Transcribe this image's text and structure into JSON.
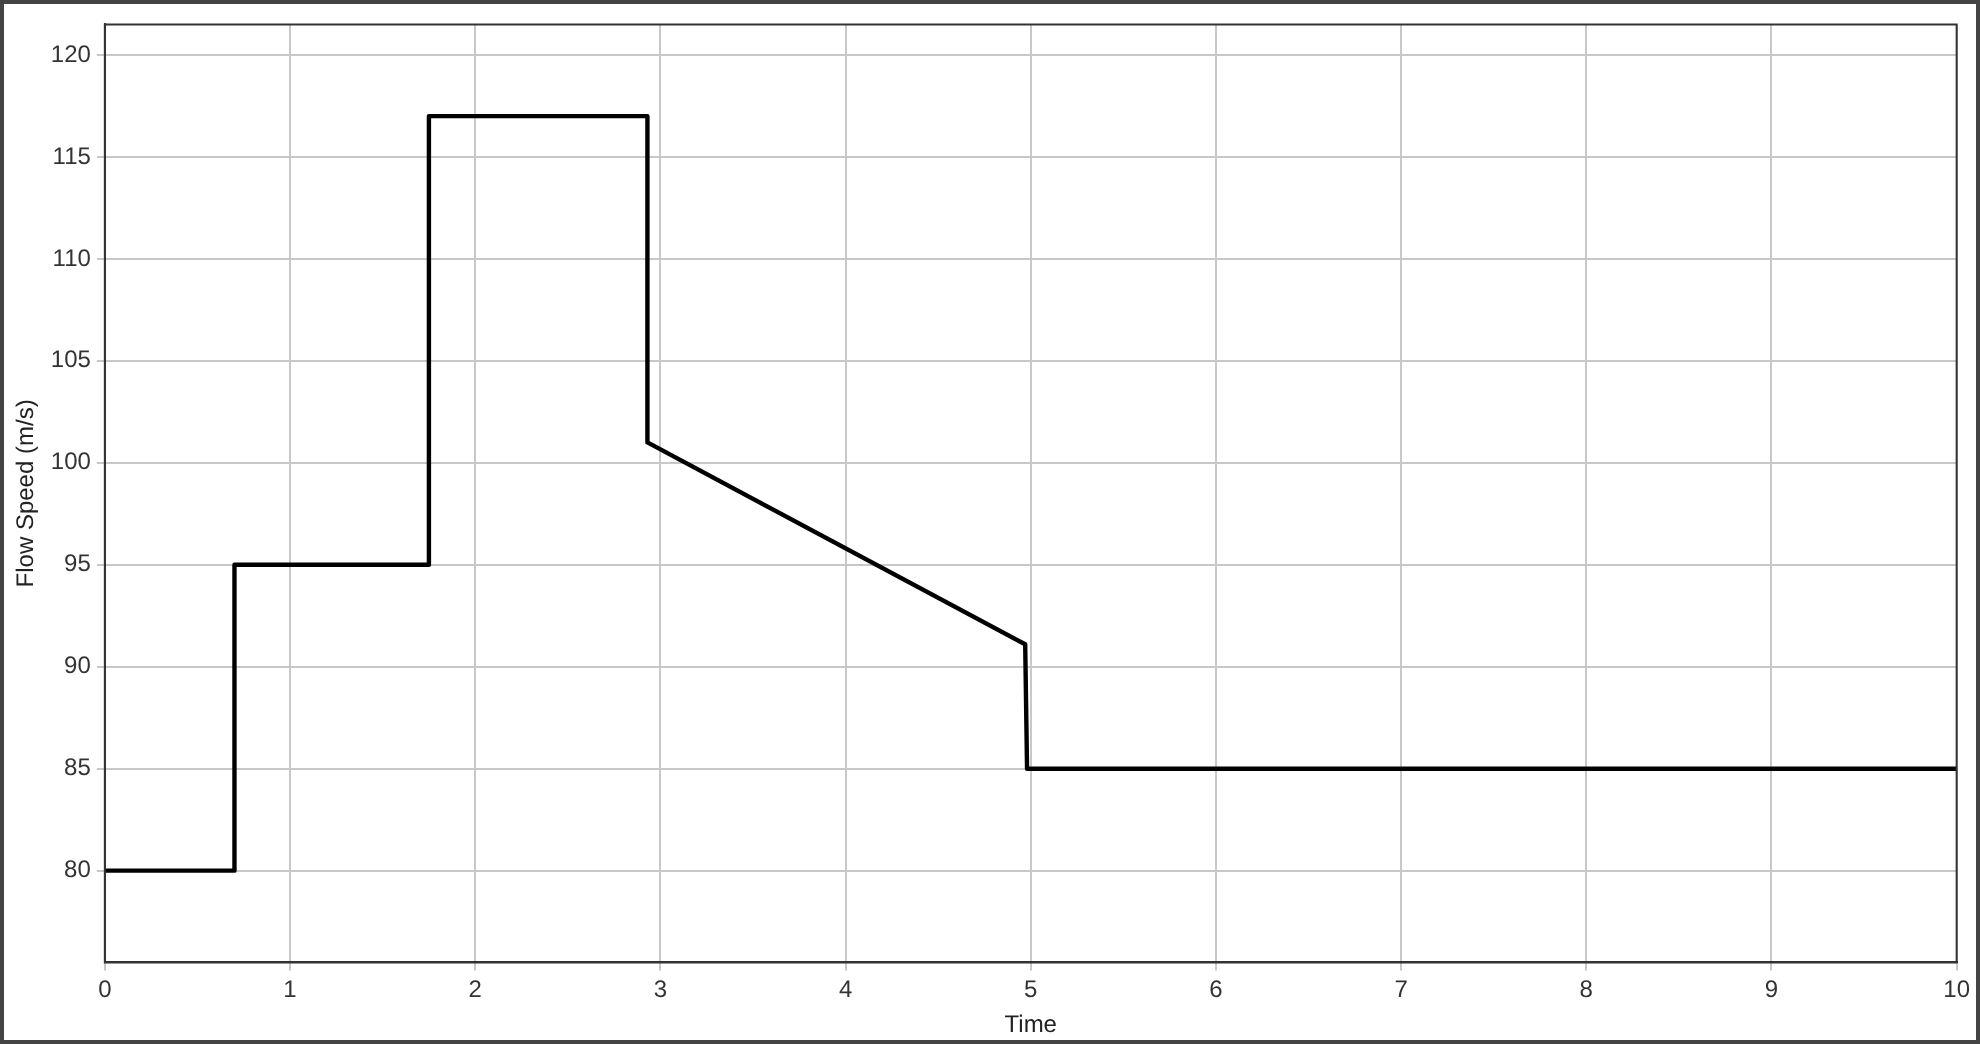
{
  "chart_data": {
    "type": "line",
    "xlabel": "Time",
    "ylabel": "Flow Speed (m/s)",
    "x": [
      0,
      0.7,
      0.7,
      1.75,
      1.75,
      2.93,
      2.93,
      4.97,
      4.98,
      10
    ],
    "series": [
      {
        "color": "#000000",
        "values": [
          80,
          80,
          95,
          95,
          117,
          117,
          101,
          91.1,
          85,
          85
        ]
      }
    ],
    "xlim": [
      0,
      10
    ],
    "xticks": [
      0,
      1,
      2,
      3,
      4,
      5,
      6,
      7,
      8,
      9,
      10
    ],
    "ylim": [
      75.5,
      121.5
    ],
    "yticks": [
      80,
      85,
      90,
      95,
      100,
      105,
      110,
      115,
      120
    ],
    "grid": true,
    "legend": false,
    "marker": "none",
    "line_style": "solid"
  }
}
